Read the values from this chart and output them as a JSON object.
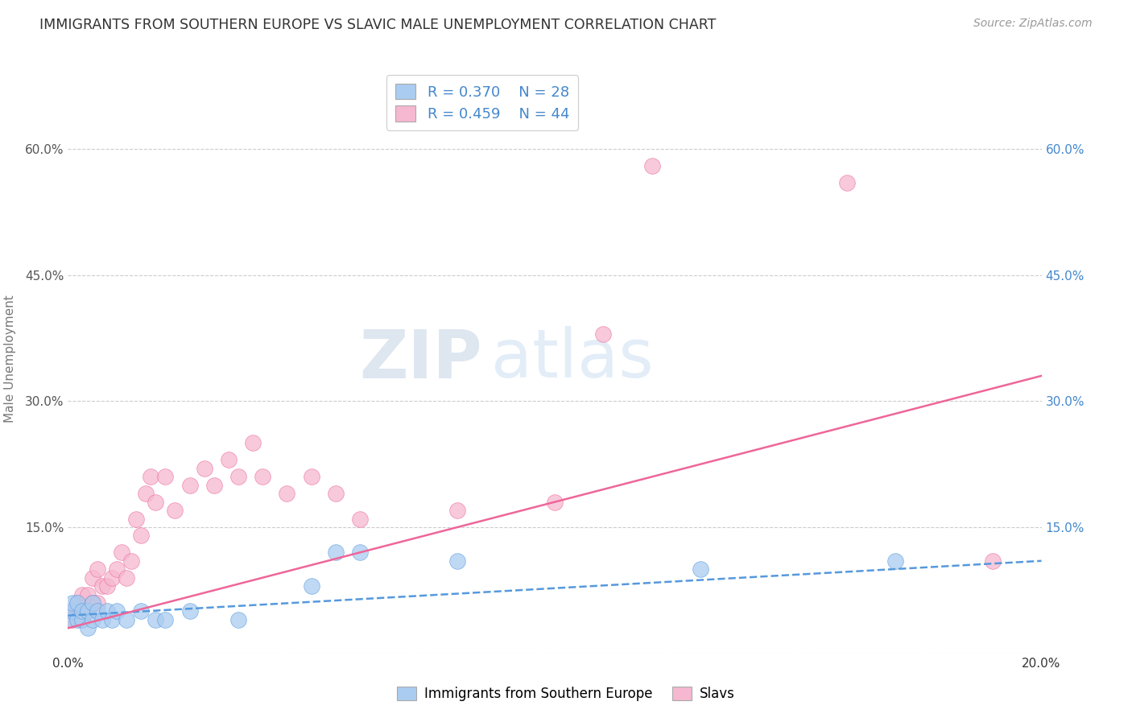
{
  "title": "IMMIGRANTS FROM SOUTHERN EUROPE VS SLAVIC MALE UNEMPLOYMENT CORRELATION CHART",
  "source_text": "Source: ZipAtlas.com",
  "ylabel": "Male Unemployment",
  "xlim": [
    0.0,
    0.2
  ],
  "ylim": [
    0.0,
    0.7
  ],
  "yticks": [
    0.0,
    0.15,
    0.3,
    0.45,
    0.6
  ],
  "ytick_labels": [
    "",
    "15.0%",
    "30.0%",
    "45.0%",
    "60.0%"
  ],
  "xticks": [
    0.0,
    0.05,
    0.1,
    0.15,
    0.2
  ],
  "xtick_labels": [
    "0.0%",
    "",
    "",
    "",
    "20.0%"
  ],
  "right_ytick_labels": [
    "",
    "15.0%",
    "30.0%",
    "45.0%",
    "60.0%"
  ],
  "legend_r1": "R = 0.370",
  "legend_n1": "N = 28",
  "legend_r2": "R = 0.459",
  "legend_n2": "N = 44",
  "series1_name": "Immigrants from Southern Europe",
  "series2_name": "Slavs",
  "color1": "#aaccf0",
  "color2": "#f5b8d0",
  "line_color1": "#5599dd",
  "line_color2": "#ee6699",
  "watermark_zip": "ZIP",
  "watermark_atlas": "atlas",
  "background_color": "#ffffff",
  "series1_x": [
    0.0,
    0.001,
    0.001,
    0.002,
    0.002,
    0.003,
    0.003,
    0.004,
    0.004,
    0.005,
    0.005,
    0.006,
    0.007,
    0.008,
    0.009,
    0.01,
    0.012,
    0.015,
    0.018,
    0.02,
    0.025,
    0.035,
    0.05,
    0.055,
    0.06,
    0.08,
    0.13,
    0.17
  ],
  "series1_y": [
    0.04,
    0.05,
    0.06,
    0.04,
    0.06,
    0.04,
    0.05,
    0.05,
    0.03,
    0.04,
    0.06,
    0.05,
    0.04,
    0.05,
    0.04,
    0.05,
    0.04,
    0.05,
    0.04,
    0.04,
    0.05,
    0.04,
    0.08,
    0.12,
    0.12,
    0.11,
    0.1,
    0.11
  ],
  "series2_x": [
    0.0,
    0.001,
    0.001,
    0.002,
    0.002,
    0.003,
    0.003,
    0.004,
    0.004,
    0.005,
    0.005,
    0.006,
    0.006,
    0.007,
    0.008,
    0.009,
    0.01,
    0.011,
    0.012,
    0.013,
    0.014,
    0.015,
    0.016,
    0.017,
    0.018,
    0.02,
    0.022,
    0.025,
    0.028,
    0.03,
    0.033,
    0.035,
    0.038,
    0.04,
    0.045,
    0.05,
    0.055,
    0.06,
    0.08,
    0.1,
    0.11,
    0.12,
    0.16,
    0.19
  ],
  "series2_y": [
    0.04,
    0.05,
    0.04,
    0.05,
    0.06,
    0.04,
    0.07,
    0.05,
    0.07,
    0.06,
    0.09,
    0.06,
    0.1,
    0.08,
    0.08,
    0.09,
    0.1,
    0.12,
    0.09,
    0.11,
    0.16,
    0.14,
    0.19,
    0.21,
    0.18,
    0.21,
    0.17,
    0.2,
    0.22,
    0.2,
    0.23,
    0.21,
    0.25,
    0.21,
    0.19,
    0.21,
    0.19,
    0.16,
    0.17,
    0.18,
    0.38,
    0.58,
    0.56,
    0.11
  ],
  "line1_x0": 0.0,
  "line1_x1": 0.2,
  "line1_y0": 0.045,
  "line1_y1": 0.11,
  "line2_x0": 0.0,
  "line2_x1": 0.2,
  "line2_y0": 0.03,
  "line2_y1": 0.33
}
